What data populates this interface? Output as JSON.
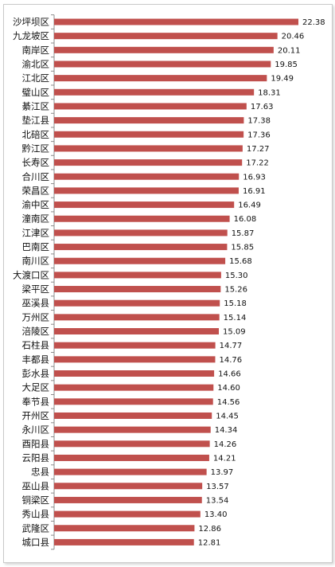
{
  "chart_data": {
    "type": "bar",
    "orientation": "horizontal",
    "title": "",
    "xlabel": "",
    "ylabel": "",
    "bar_color": "#c0504d",
    "axis_color": "#8c8c8c",
    "xlim": [
      0,
      22.38
    ],
    "grid": false,
    "legend": "none",
    "categories": [
      "沙坪坝区",
      "九龙坡区",
      "南岸区",
      "渝北区",
      "江北区",
      "璧山区",
      "綦江区",
      "垫江县",
      "北碚区",
      "黔江区",
      "长寿区",
      "合川区",
      "荣昌区",
      "渝中区",
      "潼南区",
      "江津区",
      "巴南区",
      "南川区",
      "大渡口区",
      "梁平区",
      "巫溪县",
      "万州区",
      "涪陵区",
      "石柱县",
      "丰都县",
      "彭水县",
      "大足区",
      "奉节县",
      "开州区",
      "永川区",
      "酉阳县",
      "云阳县",
      "忠县",
      "巫山县",
      "铜梁区",
      "秀山县",
      "武隆区",
      "城口县"
    ],
    "values": [
      22.38,
      20.46,
      20.11,
      19.85,
      19.49,
      18.31,
      17.63,
      17.38,
      17.36,
      17.27,
      17.22,
      16.93,
      16.91,
      16.49,
      16.08,
      15.87,
      15.85,
      15.68,
      15.3,
      15.26,
      15.18,
      15.14,
      15.09,
      14.77,
      14.76,
      14.66,
      14.6,
      14.56,
      14.45,
      14.34,
      14.26,
      14.21,
      13.97,
      13.57,
      13.54,
      13.4,
      12.86,
      12.81
    ],
    "value_labels": [
      "22.38",
      "20.46",
      "20.11",
      "19.85",
      "19.49",
      "18.31",
      "17.63",
      "17.38",
      "17.36",
      "17.27",
      "17.22",
      "16.93",
      "16.91",
      "16.49",
      "16.08",
      "15.87",
      "15.85",
      "15.68",
      "15.30",
      "15.26",
      "15.18",
      "15.14",
      "15.09",
      "14.77",
      "14.76",
      "14.66",
      "14.60",
      "14.56",
      "14.45",
      "14.34",
      "14.26",
      "14.21",
      "13.97",
      "13.57",
      "13.54",
      "13.40",
      "12.86",
      "12.81"
    ]
  }
}
